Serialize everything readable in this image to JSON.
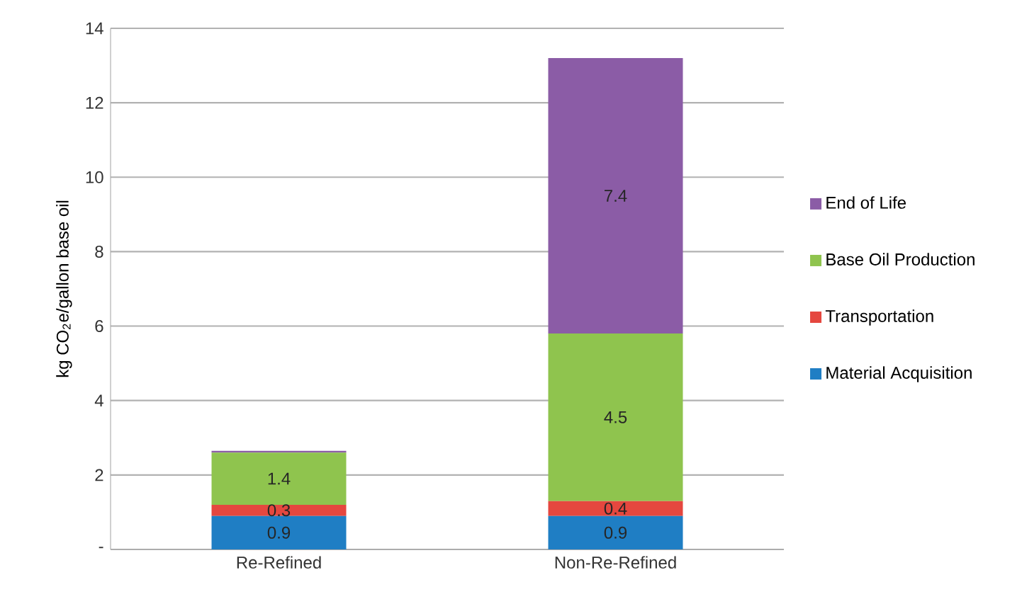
{
  "chart_data": {
    "type": "bar",
    "stacked": true,
    "ylabel": "kg CO$_{2}$e/gallon base oil",
    "categories": [
      "Re-Refined",
      "Non-Re-Refined"
    ],
    "series": [
      {
        "name": "Material Acquisition",
        "color": "#1f7ec4",
        "values": [
          0.9,
          0.9
        ],
        "value_labels": [
          "0.9",
          "0.9"
        ]
      },
      {
        "name": "Transportation",
        "color": "#e5473f",
        "values": [
          0.3,
          0.4
        ],
        "value_labels": [
          "0.3",
          "0.4"
        ]
      },
      {
        "name": "Base Oil Production",
        "color": "#8fc44e",
        "values": [
          1.4,
          4.5
        ],
        "value_labels": [
          "1.4",
          "4.5"
        ]
      },
      {
        "name": "End of Life",
        "color": "#8b5ca6",
        "values": [
          0.05,
          7.4
        ],
        "value_labels": [
          null,
          "7.4"
        ]
      }
    ],
    "ylim": [
      0,
      14
    ],
    "yticks": [
      {
        "value": 0,
        "label": "-"
      },
      2,
      4,
      6,
      8,
      10,
      12,
      14
    ],
    "grid": "y",
    "legend": "right"
  }
}
